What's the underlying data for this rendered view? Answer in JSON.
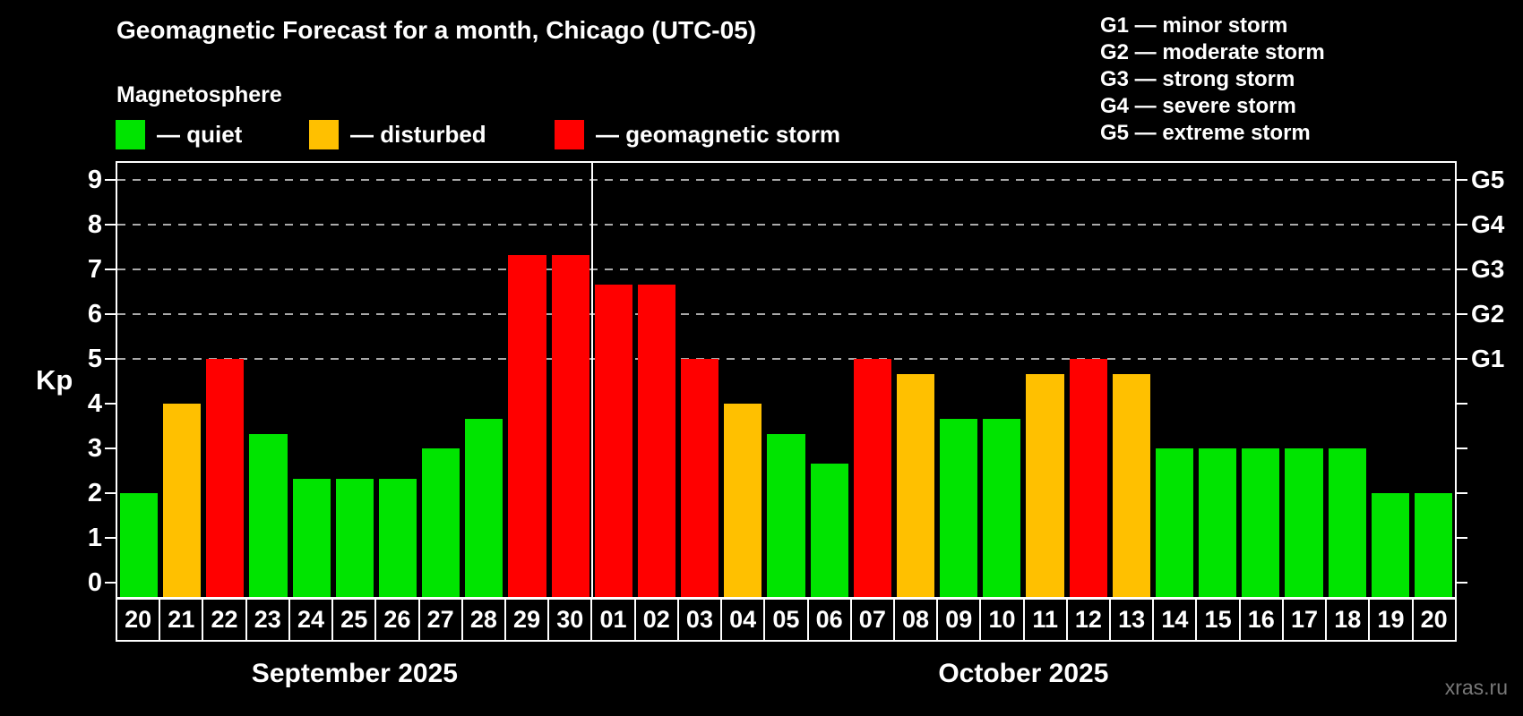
{
  "title": "Geomagnetic Forecast for a month, Chicago (UTC-05)",
  "subtitle": "Magnetosphere",
  "legend": [
    {
      "key": "quiet",
      "label": "— quiet"
    },
    {
      "key": "disturbed",
      "label": "— disturbed"
    },
    {
      "key": "storm",
      "label": "— geomagnetic storm"
    }
  ],
  "g_scale_legend": [
    "G1 — minor storm",
    "G2 — moderate storm",
    "G3 — strong storm",
    "G4 — severe storm",
    "G5 — extreme storm"
  ],
  "colors": {
    "quiet": "#00e400",
    "disturbed": "#ffc000",
    "storm": "#ff0000",
    "grid": "#aaaaaa",
    "axis": "#ffffff",
    "watermark_gray": "#787878"
  },
  "watermark": "xras.ru",
  "chart_data": {
    "type": "bar",
    "ylabel": "Kp",
    "ylim": [
      0,
      9
    ],
    "yticks": [
      "0",
      "1",
      "2",
      "3",
      "4",
      "5",
      "6",
      "7",
      "8",
      "9"
    ],
    "gridlines_kp": [
      5,
      6,
      7,
      8,
      9
    ],
    "grid_style": "dashed",
    "right_axis_labels": [
      {
        "kp": 5,
        "text": "G1"
      },
      {
        "kp": 6,
        "text": "G2"
      },
      {
        "kp": 7,
        "text": "G3"
      },
      {
        "kp": 8,
        "text": "G4"
      },
      {
        "kp": 9,
        "text": "G5"
      }
    ],
    "months": [
      {
        "label": "September 2025",
        "days": 11
      },
      {
        "label": "October 2025",
        "days": 20
      }
    ],
    "days": [
      {
        "date": "20",
        "kp": 2.0,
        "level": "quiet"
      },
      {
        "date": "21",
        "kp": 4.0,
        "level": "disturbed"
      },
      {
        "date": "22",
        "kp": 5.0,
        "level": "storm"
      },
      {
        "date": "23",
        "kp": 3.33,
        "level": "quiet"
      },
      {
        "date": "24",
        "kp": 2.33,
        "level": "quiet"
      },
      {
        "date": "25",
        "kp": 2.33,
        "level": "quiet"
      },
      {
        "date": "26",
        "kp": 2.33,
        "level": "quiet"
      },
      {
        "date": "27",
        "kp": 3.0,
        "level": "quiet"
      },
      {
        "date": "28",
        "kp": 3.67,
        "level": "quiet"
      },
      {
        "date": "29",
        "kp": 7.33,
        "level": "storm"
      },
      {
        "date": "30",
        "kp": 7.33,
        "level": "storm"
      },
      {
        "date": "01",
        "kp": 6.67,
        "level": "storm"
      },
      {
        "date": "02",
        "kp": 6.67,
        "level": "storm"
      },
      {
        "date": "03",
        "kp": 5.0,
        "level": "storm"
      },
      {
        "date": "04",
        "kp": 4.0,
        "level": "disturbed"
      },
      {
        "date": "05",
        "kp": 3.33,
        "level": "quiet"
      },
      {
        "date": "06",
        "kp": 2.67,
        "level": "quiet"
      },
      {
        "date": "07",
        "kp": 5.0,
        "level": "storm"
      },
      {
        "date": "08",
        "kp": 4.67,
        "level": "disturbed"
      },
      {
        "date": "09",
        "kp": 3.67,
        "level": "quiet"
      },
      {
        "date": "10",
        "kp": 3.67,
        "level": "quiet"
      },
      {
        "date": "11",
        "kp": 4.67,
        "level": "disturbed"
      },
      {
        "date": "12",
        "kp": 5.0,
        "level": "storm"
      },
      {
        "date": "13",
        "kp": 4.67,
        "level": "disturbed"
      },
      {
        "date": "14",
        "kp": 3.0,
        "level": "quiet"
      },
      {
        "date": "15",
        "kp": 3.0,
        "level": "quiet"
      },
      {
        "date": "16",
        "kp": 3.0,
        "level": "quiet"
      },
      {
        "date": "17",
        "kp": 3.0,
        "level": "quiet"
      },
      {
        "date": "18",
        "kp": 3.0,
        "level": "quiet"
      },
      {
        "date": "19",
        "kp": 2.0,
        "level": "quiet"
      },
      {
        "date": "20",
        "kp": 2.0,
        "level": "quiet"
      }
    ]
  }
}
